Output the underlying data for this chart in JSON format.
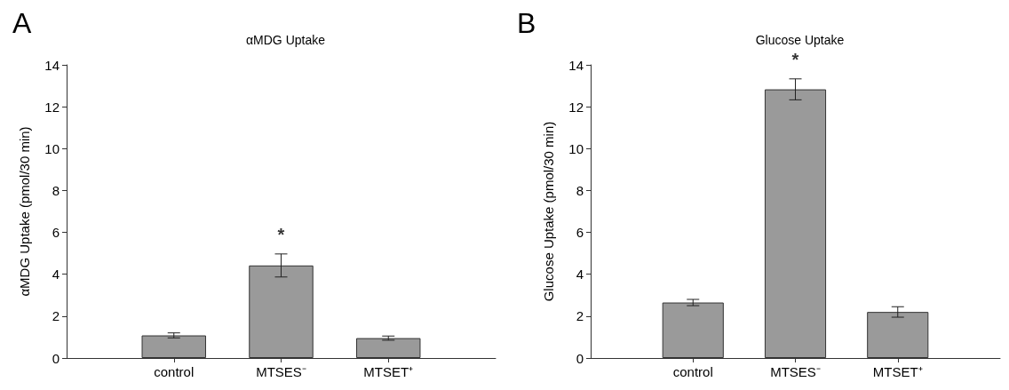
{
  "chart_data": [
    {
      "type": "bar",
      "title": "αMDG Uptake",
      "ylabel": "αMDG Uptake (pmol/30 min)",
      "categories": [
        null,
        "control",
        "MTSES⁻",
        "MTSET⁺",
        null
      ],
      "values": [
        null,
        1.08,
        4.42,
        0.95,
        null
      ],
      "errors": [
        null,
        0.12,
        0.55,
        0.1,
        null
      ],
      "color": "#9a9a9a",
      "ylim": [
        0,
        14
      ],
      "yticks": [
        0,
        2,
        4,
        6,
        8,
        10,
        12,
        14
      ],
      "grid": false,
      "annotations": [
        "A",
        "*"
      ]
    },
    {
      "type": "bar",
      "title": "Glucose Uptake",
      "ylabel": "Glucose Uptake (pmol/30 min)",
      "categories": [
        null,
        "control",
        "MTSES⁻",
        "MTSET⁺",
        null
      ],
      "values": [
        null,
        2.65,
        12.83,
        2.2,
        null
      ],
      "errors": [
        null,
        0.15,
        0.5,
        0.25,
        null
      ],
      "color": "#9a9a9a",
      "ylim": [
        0,
        14
      ],
      "yticks": [
        0,
        2,
        4,
        6,
        8,
        10,
        12,
        14
      ],
      "grid": false,
      "annotations": [
        "B",
        "*"
      ]
    }
  ]
}
